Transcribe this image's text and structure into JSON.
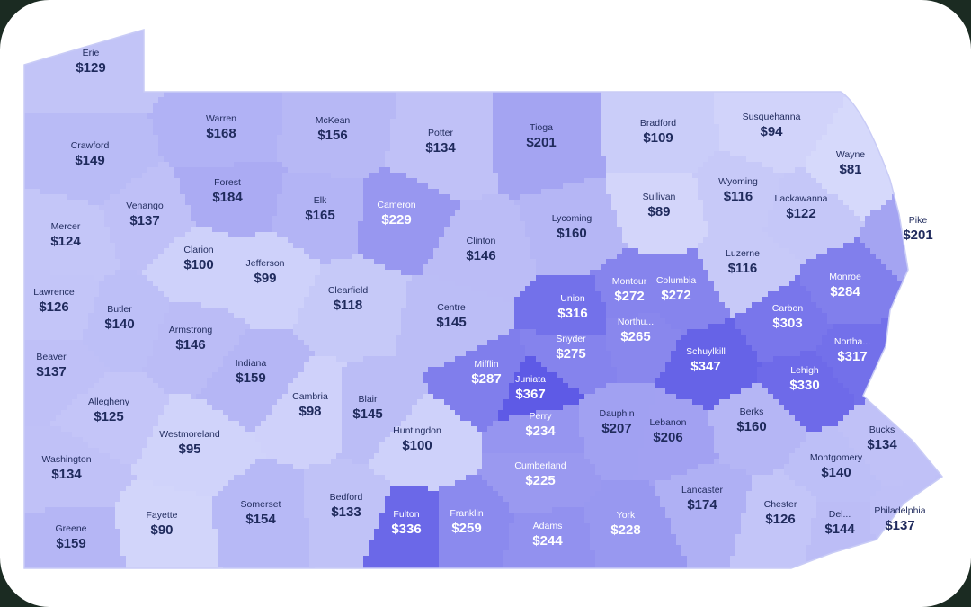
{
  "map": {
    "region": "Pennsylvania",
    "color_scale": {
      "low": "#d6d9fb",
      "high": "#5e5ae6",
      "dark_text": "#1f2a5c",
      "light_text": "#ffffff"
    },
    "counties": [
      {
        "name": "Erie",
        "value": "$129",
        "amount": 129
      },
      {
        "name": "Crawford",
        "value": "$149",
        "amount": 149
      },
      {
        "name": "Warren",
        "value": "$168",
        "amount": 168
      },
      {
        "name": "McKean",
        "value": "$156",
        "amount": 156
      },
      {
        "name": "Potter",
        "value": "$134",
        "amount": 134
      },
      {
        "name": "Tioga",
        "value": "$201",
        "amount": 201
      },
      {
        "name": "Bradford",
        "value": "$109",
        "amount": 109
      },
      {
        "name": "Susquehanna",
        "value": "$94",
        "amount": 94
      },
      {
        "name": "Wayne",
        "value": "$81",
        "amount": 81
      },
      {
        "name": "Forest",
        "value": "$184",
        "amount": 184
      },
      {
        "name": "Venango",
        "value": "$137",
        "amount": 137
      },
      {
        "name": "Mercer",
        "value": "$124",
        "amount": 124
      },
      {
        "name": "Elk",
        "value": "$165",
        "amount": 165
      },
      {
        "name": "Cameron",
        "value": "$229",
        "amount": 229
      },
      {
        "name": "Sullivan",
        "value": "$89",
        "amount": 89
      },
      {
        "name": "Wyoming",
        "value": "$116",
        "amount": 116
      },
      {
        "name": "Lackawanna",
        "value": "$122",
        "amount": 122
      },
      {
        "name": "Pike",
        "value": "$201",
        "amount": 201
      },
      {
        "name": "Clarion",
        "value": "$100",
        "amount": 100
      },
      {
        "name": "Jefferson",
        "value": "$99",
        "amount": 99
      },
      {
        "name": "Clinton",
        "value": "$146",
        "amount": 146
      },
      {
        "name": "Lycoming",
        "value": "$160",
        "amount": 160
      },
      {
        "name": "Luzerne",
        "value": "$116",
        "amount": 116
      },
      {
        "name": "Monroe",
        "value": "$284",
        "amount": 284
      },
      {
        "name": "Lawrence",
        "value": "$126",
        "amount": 126
      },
      {
        "name": "Butler",
        "value": "$140",
        "amount": 140
      },
      {
        "name": "Clearfield",
        "value": "$118",
        "amount": 118
      },
      {
        "name": "Centre",
        "value": "$145",
        "amount": 145
      },
      {
        "name": "Union",
        "value": "$316",
        "amount": 316
      },
      {
        "name": "Montour",
        "value": "$272",
        "amount": 272
      },
      {
        "name": "Columbia",
        "value": "$272",
        "amount": 272
      },
      {
        "name": "Carbon",
        "value": "$303",
        "amount": 303
      },
      {
        "name": "Armstrong",
        "value": "$146",
        "amount": 146
      },
      {
        "name": "Northu...",
        "value": "$265",
        "amount": 265
      },
      {
        "name": "Snyder",
        "value": "$275",
        "amount": 275
      },
      {
        "name": "Northa...",
        "value": "$317",
        "amount": 317
      },
      {
        "name": "Beaver",
        "value": "$137",
        "amount": 137
      },
      {
        "name": "Indiana",
        "value": "$159",
        "amount": 159
      },
      {
        "name": "Mifflin",
        "value": "$287",
        "amount": 287
      },
      {
        "name": "Schuylkill",
        "value": "$347",
        "amount": 347
      },
      {
        "name": "Lehigh",
        "value": "$330",
        "amount": 330
      },
      {
        "name": "Allegheny",
        "value": "$125",
        "amount": 125
      },
      {
        "name": "Cambria",
        "value": "$98",
        "amount": 98
      },
      {
        "name": "Blair",
        "value": "$145",
        "amount": 145
      },
      {
        "name": "Juniata",
        "value": "$367",
        "amount": 367
      },
      {
        "name": "Berks",
        "value": "$160",
        "amount": 160
      },
      {
        "name": "Westmoreland",
        "value": "$95",
        "amount": 95
      },
      {
        "name": "Huntingdon",
        "value": "$100",
        "amount": 100
      },
      {
        "name": "Perry",
        "value": "$234",
        "amount": 234
      },
      {
        "name": "Dauphin",
        "value": "$207",
        "amount": 207
      },
      {
        "name": "Lebanon",
        "value": "$206",
        "amount": 206
      },
      {
        "name": "Bucks",
        "value": "$134",
        "amount": 134
      },
      {
        "name": "Washington",
        "value": "$134",
        "amount": 134
      },
      {
        "name": "Montgomery",
        "value": "$140",
        "amount": 140
      },
      {
        "name": "Cumberland",
        "value": "$225",
        "amount": 225
      },
      {
        "name": "Lancaster",
        "value": "$174",
        "amount": 174
      },
      {
        "name": "Chester",
        "value": "$126",
        "amount": 126
      },
      {
        "name": "Somerset",
        "value": "$154",
        "amount": 154
      },
      {
        "name": "Bedford",
        "value": "$133",
        "amount": 133
      },
      {
        "name": "Fayette",
        "value": "$90",
        "amount": 90
      },
      {
        "name": "Greene",
        "value": "$159",
        "amount": 159
      },
      {
        "name": "Fulton",
        "value": "$336",
        "amount": 336
      },
      {
        "name": "Franklin",
        "value": "$259",
        "amount": 259
      },
      {
        "name": "Adams",
        "value": "$244",
        "amount": 244
      },
      {
        "name": "York",
        "value": "$228",
        "amount": 228
      },
      {
        "name": "Del...",
        "value": "$144",
        "amount": 144
      },
      {
        "name": "Philadelphia",
        "value": "$137",
        "amount": 137
      }
    ]
  }
}
